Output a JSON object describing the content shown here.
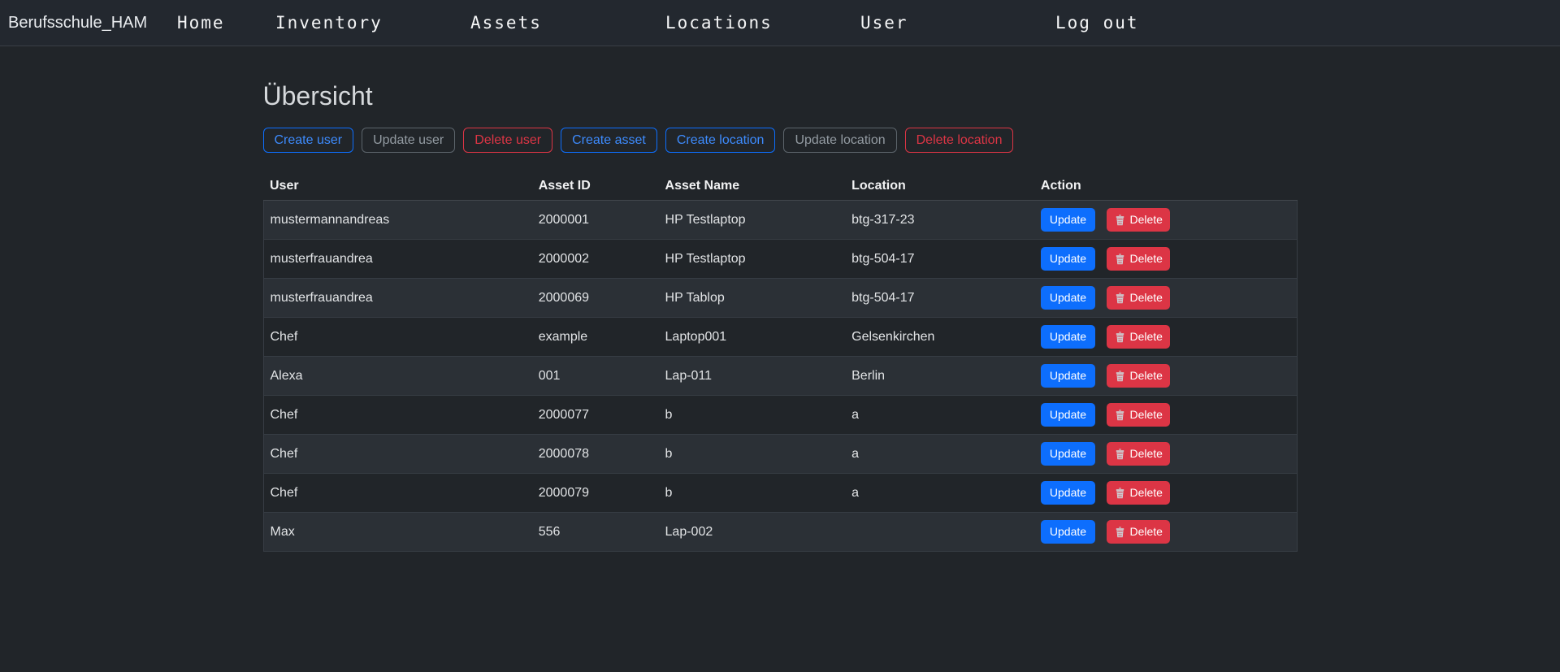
{
  "navbar": {
    "brand": "Berufsschule_HAM",
    "items": [
      {
        "label": "Home"
      },
      {
        "label": "Inventory"
      },
      {
        "label": "Assets"
      },
      {
        "label": "Locations"
      },
      {
        "label": "User"
      },
      {
        "label": "Log out"
      }
    ]
  },
  "page": {
    "title": "Übersicht"
  },
  "toolbar": {
    "buttons": [
      {
        "label": "Create user",
        "variant": "primary"
      },
      {
        "label": "Update user",
        "variant": "secondary"
      },
      {
        "label": "Delete user",
        "variant": "danger"
      },
      {
        "label": "Create asset",
        "variant": "primary"
      },
      {
        "label": "Create location",
        "variant": "primary"
      },
      {
        "label": "Update location",
        "variant": "secondary"
      },
      {
        "label": "Delete location",
        "variant": "danger"
      }
    ]
  },
  "table": {
    "headers": [
      "User",
      "Asset ID",
      "Asset Name",
      "Location",
      "Action"
    ],
    "action_labels": {
      "update": "Update",
      "delete": "Delete"
    },
    "rows": [
      {
        "user": "mustermannandreas",
        "asset_id": "2000001",
        "asset_name": "HP Testlaptop",
        "location": "btg-317-23"
      },
      {
        "user": "musterfrauandrea",
        "asset_id": "2000002",
        "asset_name": "HP Testlaptop",
        "location": "btg-504-17"
      },
      {
        "user": "musterfrauandrea",
        "asset_id": "2000069",
        "asset_name": "HP Tablop",
        "location": "btg-504-17"
      },
      {
        "user": "Chef",
        "asset_id": "example",
        "asset_name": "Laptop001",
        "location": "Gelsenkirchen"
      },
      {
        "user": "Alexa",
        "asset_id": "001",
        "asset_name": "Lap-011",
        "location": "Berlin"
      },
      {
        "user": "Chef",
        "asset_id": "2000077",
        "asset_name": "b",
        "location": "a"
      },
      {
        "user": "Chef",
        "asset_id": "2000078",
        "asset_name": "b",
        "location": "a"
      },
      {
        "user": "Chef",
        "asset_id": "2000079",
        "asset_name": "b",
        "location": "a"
      },
      {
        "user": "Max",
        "asset_id": "556",
        "asset_name": "Lap-002",
        "location": ""
      }
    ]
  },
  "colors": {
    "primary": "#0d6efd",
    "danger": "#dc3545",
    "navbar_bg": "#23282f",
    "body_bg": "#212529",
    "stripe_bg": "#2b3036"
  }
}
